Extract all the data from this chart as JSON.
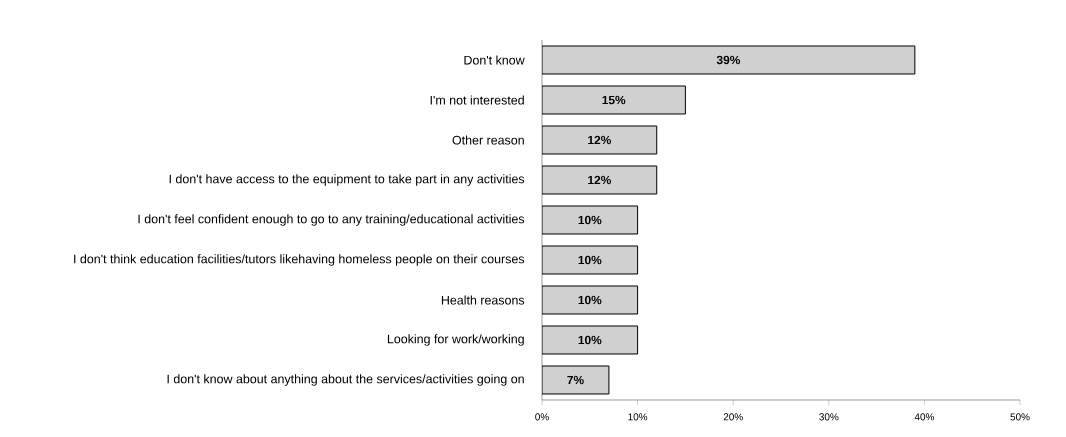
{
  "chart_data": {
    "type": "bar",
    "orientation": "horizontal",
    "categories": [
      "Don't know",
      "I'm not interested",
      "Other reason",
      "I don't have access to the equipment to take part in any activities",
      "I don't feel confident enough to go to any training/educational activities",
      "I don't think education facilities/tutors likehaving homeless people on their courses",
      "Health reasons",
      "Looking for work/working",
      "I don't know about anything about the services/activities going on"
    ],
    "values": [
      39,
      15,
      12,
      12,
      10,
      10,
      10,
      10,
      7
    ],
    "value_labels": [
      "39%",
      "15%",
      "12%",
      "12%",
      "10%",
      "10%",
      "10%",
      "10%",
      "7%"
    ],
    "color": "#d0d0d0",
    "xlim": [
      0,
      50
    ],
    "xticks": [
      {
        "value": 0,
        "label": "0%"
      },
      {
        "value": 10,
        "label": "10%"
      },
      {
        "value": 20,
        "label": "20%"
      },
      {
        "value": 30,
        "label": "30%"
      },
      {
        "value": 40,
        "label": "40%"
      },
      {
        "value": 50,
        "label": "50%"
      }
    ]
  }
}
